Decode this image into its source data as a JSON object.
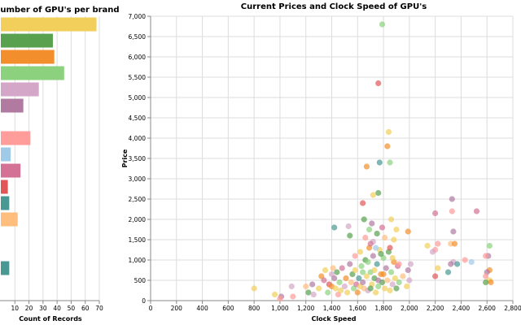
{
  "chart_data": [
    {
      "type": "bar",
      "orientation": "horizontal",
      "title": "Number of GPU's per brand",
      "xlabel": "Count of Records",
      "ylabel": "",
      "xlim": [
        0,
        70
      ],
      "x_ticks": [
        10,
        20,
        30,
        40,
        50,
        60,
        70
      ],
      "grid": true,
      "bars": [
        {
          "value": 68,
          "color": "#f2cf5b"
        },
        {
          "value": 37,
          "color": "#59a14f"
        },
        {
          "value": 38,
          "color": "#f28e2b"
        },
        {
          "value": 45,
          "color": "#8cd17d"
        },
        {
          "value": 27,
          "color": "#d4a6c8"
        },
        {
          "value": 16,
          "color": "#b07aa1"
        },
        {
          "value": 0,
          "color": "#ff9d9a"
        },
        {
          "value": 21,
          "color": "#ff9d9a"
        },
        {
          "value": 7,
          "color": "#a0cbe8"
        },
        {
          "value": 14,
          "color": "#d37295"
        },
        {
          "value": 5,
          "color": "#e15759"
        },
        {
          "value": 6,
          "color": "#499894"
        },
        {
          "value": 12,
          "color": "#ffbe7d"
        },
        {
          "value": 0,
          "color": "#ffffff"
        },
        {
          "value": 0,
          "color": "#ffffff"
        },
        {
          "value": 6,
          "color": "#499894"
        }
      ]
    },
    {
      "type": "scatter",
      "title": "Current Prices and Clock Speed of GPU's",
      "xlabel": "Clock Speed",
      "ylabel": "Price",
      "xlim": [
        0,
        2800
      ],
      "ylim": [
        0,
        7000
      ],
      "x_ticks": [
        0,
        200,
        400,
        600,
        800,
        1000,
        1200,
        1400,
        1600,
        1800,
        2000,
        2200,
        2400,
        2600,
        2800
      ],
      "y_ticks": [
        0,
        500,
        1000,
        1500,
        2000,
        2500,
        3000,
        3500,
        4000,
        4500,
        5000,
        5500,
        6000,
        6500,
        7000
      ],
      "grid": true,
      "point_opacity": 0.7,
      "points": [
        {
          "x": 1790,
          "y": 6800,
          "color": "#8cd17d"
        },
        {
          "x": 1760,
          "y": 5350,
          "color": "#e15759"
        },
        {
          "x": 1840,
          "y": 4150,
          "color": "#f2cf5b"
        },
        {
          "x": 1830,
          "y": 3800,
          "color": "#f28e2b"
        },
        {
          "x": 1770,
          "y": 3400,
          "color": "#499894"
        },
        {
          "x": 1850,
          "y": 3400,
          "color": "#8cd17d"
        },
        {
          "x": 1670,
          "y": 3300,
          "color": "#f28e2b"
        },
        {
          "x": 1760,
          "y": 2650,
          "color": "#59a14f"
        },
        {
          "x": 1720,
          "y": 2600,
          "color": "#f2cf5b"
        },
        {
          "x": 1640,
          "y": 2400,
          "color": "#e15759"
        },
        {
          "x": 2330,
          "y": 2500,
          "color": "#b07aa1"
        },
        {
          "x": 2520,
          "y": 2200,
          "color": "#d37295"
        },
        {
          "x": 2330,
          "y": 2200,
          "color": "#ff9d9a"
        },
        {
          "x": 2200,
          "y": 2150,
          "color": "#d37295"
        },
        {
          "x": 1860,
          "y": 2000,
          "color": "#f2cf5b"
        },
        {
          "x": 1650,
          "y": 2000,
          "color": "#59a14f"
        },
        {
          "x": 1420,
          "y": 1800,
          "color": "#499894"
        },
        {
          "x": 1530,
          "y": 1830,
          "color": "#d4a6c8"
        },
        {
          "x": 1710,
          "y": 1900,
          "color": "#b07aa1"
        },
        {
          "x": 1790,
          "y": 1800,
          "color": "#d37295"
        },
        {
          "x": 1900,
          "y": 1750,
          "color": "#f2cf5b"
        },
        {
          "x": 1990,
          "y": 1700,
          "color": "#f28e2b"
        },
        {
          "x": 1540,
          "y": 1600,
          "color": "#59a14f"
        },
        {
          "x": 1690,
          "y": 1750,
          "color": "#8cd17d"
        },
        {
          "x": 1750,
          "y": 1650,
          "color": "#59a14f"
        },
        {
          "x": 1810,
          "y": 1550,
          "color": "#ffbe7d"
        },
        {
          "x": 1880,
          "y": 1500,
          "color": "#f2cf5b"
        },
        {
          "x": 1720,
          "y": 1450,
          "color": "#d4a6c8"
        },
        {
          "x": 2340,
          "y": 1700,
          "color": "#b07aa1"
        },
        {
          "x": 2220,
          "y": 1400,
          "color": "#ff9d9a"
        },
        {
          "x": 2320,
          "y": 1400,
          "color": "#ffbe7d"
        },
        {
          "x": 2350,
          "y": 1400,
          "color": "#f28e2b"
        },
        {
          "x": 2620,
          "y": 1350,
          "color": "#8cd17d"
        },
        {
          "x": 2140,
          "y": 1350,
          "color": "#f2cf5b"
        },
        {
          "x": 2200,
          "y": 1250,
          "color": "#ff9d9a"
        },
        {
          "x": 2180,
          "y": 1200,
          "color": "#d4a6c8"
        },
        {
          "x": 2610,
          "y": 1100,
          "color": "#b07aa1"
        },
        {
          "x": 2590,
          "y": 1100,
          "color": "#ff9d9a"
        },
        {
          "x": 2430,
          "y": 1000,
          "color": "#ff9d9a"
        },
        {
          "x": 2340,
          "y": 950,
          "color": "#d4a6c8"
        },
        {
          "x": 2480,
          "y": 950,
          "color": "#a0cbe8"
        },
        {
          "x": 2370,
          "y": 900,
          "color": "#499894"
        },
        {
          "x": 2320,
          "y": 900,
          "color": "#b07aa1"
        },
        {
          "x": 2010,
          "y": 900,
          "color": "#d4a6c8"
        },
        {
          "x": 2220,
          "y": 800,
          "color": "#f2cf5b"
        },
        {
          "x": 2620,
          "y": 750,
          "color": "#f28e2b"
        },
        {
          "x": 2600,
          "y": 700,
          "color": "#b07aa1"
        },
        {
          "x": 2300,
          "y": 700,
          "color": "#499894"
        },
        {
          "x": 2200,
          "y": 600,
          "color": "#e15759"
        },
        {
          "x": 2590,
          "y": 600,
          "color": "#ff9d9a"
        },
        {
          "x": 2620,
          "y": 500,
          "color": "#f2cf5b"
        },
        {
          "x": 2630,
          "y": 450,
          "color": "#f28e2b"
        },
        {
          "x": 2590,
          "y": 450,
          "color": "#59a14f"
        },
        {
          "x": 800,
          "y": 300,
          "color": "#f2cf5b"
        },
        {
          "x": 960,
          "y": 150,
          "color": "#f2cf5b"
        },
        {
          "x": 1010,
          "y": 100,
          "color": "#b07aa1"
        },
        {
          "x": 1000,
          "y": 50,
          "color": "#ff9d9a"
        },
        {
          "x": 1090,
          "y": 350,
          "color": "#d4a6c8"
        },
        {
          "x": 1100,
          "y": 100,
          "color": "#ff9d9a"
        },
        {
          "x": 1200,
          "y": 350,
          "color": "#ffbe7d"
        },
        {
          "x": 1220,
          "y": 200,
          "color": "#59a14f"
        },
        {
          "x": 1250,
          "y": 400,
          "color": "#b07aa1"
        },
        {
          "x": 1260,
          "y": 150,
          "color": "#d4a6c8"
        },
        {
          "x": 1300,
          "y": 300,
          "color": "#f2cf5b"
        },
        {
          "x": 1320,
          "y": 600,
          "color": "#f28e2b"
        },
        {
          "x": 1340,
          "y": 500,
          "color": "#d37295"
        },
        {
          "x": 1350,
          "y": 750,
          "color": "#f2cf5b"
        },
        {
          "x": 1370,
          "y": 200,
          "color": "#8cd17d"
        },
        {
          "x": 1380,
          "y": 400,
          "color": "#e15759"
        },
        {
          "x": 1400,
          "y": 350,
          "color": "#f28e2b"
        },
        {
          "x": 1400,
          "y": 650,
          "color": "#d4a6c8"
        },
        {
          "x": 1410,
          "y": 800,
          "color": "#ffbe7d"
        },
        {
          "x": 1420,
          "y": 550,
          "color": "#b07aa1"
        },
        {
          "x": 1430,
          "y": 300,
          "color": "#f2cf5b"
        },
        {
          "x": 1440,
          "y": 700,
          "color": "#59a14f"
        },
        {
          "x": 1450,
          "y": 150,
          "color": "#ff9d9a"
        },
        {
          "x": 1460,
          "y": 450,
          "color": "#8cd17d"
        },
        {
          "x": 1470,
          "y": 250,
          "color": "#f2cf5b"
        },
        {
          "x": 1480,
          "y": 800,
          "color": "#d37295"
        },
        {
          "x": 1500,
          "y": 350,
          "color": "#d4a6c8"
        },
        {
          "x": 1510,
          "y": 550,
          "color": "#f28e2b"
        },
        {
          "x": 1520,
          "y": 200,
          "color": "#f2cf5b"
        },
        {
          "x": 1540,
          "y": 900,
          "color": "#b07aa1"
        },
        {
          "x": 1550,
          "y": 450,
          "color": "#ffbe7d"
        },
        {
          "x": 1560,
          "y": 650,
          "color": "#59a14f"
        },
        {
          "x": 1570,
          "y": 300,
          "color": "#8cd17d"
        },
        {
          "x": 1580,
          "y": 750,
          "color": "#f2cf5b"
        },
        {
          "x": 1590,
          "y": 400,
          "color": "#d37295"
        },
        {
          "x": 1600,
          "y": 200,
          "color": "#f28e2b"
        },
        {
          "x": 1610,
          "y": 550,
          "color": "#499894"
        },
        {
          "x": 1620,
          "y": 350,
          "color": "#f2cf5b"
        },
        {
          "x": 1630,
          "y": 850,
          "color": "#8cd17d"
        },
        {
          "x": 1640,
          "y": 450,
          "color": "#b07aa1"
        },
        {
          "x": 1650,
          "y": 300,
          "color": "#ffbe7d"
        },
        {
          "x": 1660,
          "y": 1000,
          "color": "#59a14f"
        },
        {
          "x": 1670,
          "y": 600,
          "color": "#f2cf5b"
        },
        {
          "x": 1680,
          "y": 250,
          "color": "#d4a6c8"
        },
        {
          "x": 1690,
          "y": 1300,
          "color": "#f28e2b"
        },
        {
          "x": 1700,
          "y": 700,
          "color": "#8cd17d"
        },
        {
          "x": 1710,
          "y": 400,
          "color": "#f2cf5b"
        },
        {
          "x": 1720,
          "y": 1100,
          "color": "#b07aa1"
        },
        {
          "x": 1730,
          "y": 550,
          "color": "#59a14f"
        },
        {
          "x": 1740,
          "y": 200,
          "color": "#f2cf5b"
        },
        {
          "x": 1750,
          "y": 900,
          "color": "#499894"
        },
        {
          "x": 1760,
          "y": 350,
          "color": "#8cd17d"
        },
        {
          "x": 1770,
          "y": 1250,
          "color": "#f2cf5b"
        },
        {
          "x": 1780,
          "y": 650,
          "color": "#f28e2b"
        },
        {
          "x": 1790,
          "y": 450,
          "color": "#59a14f"
        },
        {
          "x": 1800,
          "y": 1050,
          "color": "#8cd17d"
        },
        {
          "x": 1810,
          "y": 300,
          "color": "#f2cf5b"
        },
        {
          "x": 1820,
          "y": 800,
          "color": "#b07aa1"
        },
        {
          "x": 1830,
          "y": 500,
          "color": "#ffbe7d"
        },
        {
          "x": 1840,
          "y": 1200,
          "color": "#59a14f"
        },
        {
          "x": 1850,
          "y": 250,
          "color": "#f2cf5b"
        },
        {
          "x": 1860,
          "y": 700,
          "color": "#8cd17d"
        },
        {
          "x": 1870,
          "y": 400,
          "color": "#d4a6c8"
        },
        {
          "x": 1880,
          "y": 950,
          "color": "#f28e2b"
        },
        {
          "x": 1890,
          "y": 550,
          "color": "#f2cf5b"
        },
        {
          "x": 1900,
          "y": 300,
          "color": "#59a14f"
        },
        {
          "x": 1910,
          "y": 850,
          "color": "#d37295"
        },
        {
          "x": 1920,
          "y": 450,
          "color": "#8cd17d"
        },
        {
          "x": 1950,
          "y": 600,
          "color": "#ffbe7d"
        },
        {
          "x": 1980,
          "y": 350,
          "color": "#f2cf5b"
        },
        {
          "x": 1990,
          "y": 750,
          "color": "#b07aa1"
        },
        {
          "x": 2000,
          "y": 500,
          "color": "#d4a6c8"
        },
        {
          "x": 1580,
          "y": 1100,
          "color": "#ff9d9a"
        },
        {
          "x": 1620,
          "y": 1200,
          "color": "#f2cf5b"
        },
        {
          "x": 1700,
          "y": 1400,
          "color": "#d37295"
        },
        {
          "x": 1660,
          "y": 1550,
          "color": "#ff9d9a"
        },
        {
          "x": 1740,
          "y": 1300,
          "color": "#a0cbe8"
        },
        {
          "x": 1850,
          "y": 1300,
          "color": "#e15759"
        },
        {
          "x": 1780,
          "y": 1150,
          "color": "#59a14f"
        },
        {
          "x": 1680,
          "y": 950,
          "color": "#8cd17d"
        },
        {
          "x": 1730,
          "y": 750,
          "color": "#f2cf5b"
        },
        {
          "x": 1760,
          "y": 500,
          "color": "#b07aa1"
        },
        {
          "x": 1800,
          "y": 650,
          "color": "#f28e2b"
        },
        {
          "x": 1700,
          "y": 300,
          "color": "#59a14f"
        },
        {
          "x": 1640,
          "y": 700,
          "color": "#8cd17d"
        },
        {
          "x": 1870,
          "y": 1050,
          "color": "#f2cf5b"
        },
        {
          "x": 1920,
          "y": 900,
          "color": "#ff9d9a"
        }
      ]
    }
  ]
}
